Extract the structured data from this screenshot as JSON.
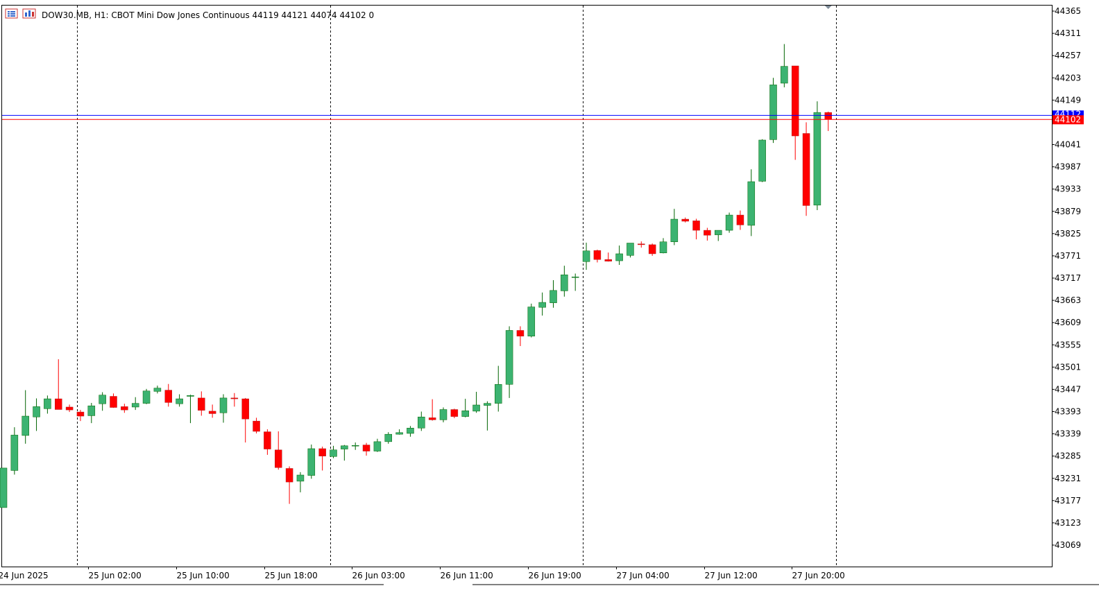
{
  "header": {
    "symbol_line": "DOW30.MB, H1:  CBOT Mini Dow Jones Continuous  44119 44121 44074 44102  0"
  },
  "colors": {
    "bull": "#3cb371",
    "bull_border": "#006400",
    "bear": "#ff0000",
    "bear_border": "#b22222",
    "ask_line": "#0000ff",
    "bid_line": "#ff0000",
    "grid": "#000000"
  },
  "chart_data": {
    "type": "candlestick",
    "symbol": "DOW30.MB",
    "timeframe": "H1",
    "ylim": [
      43015,
      44370
    ],
    "y_ticks": [
      44365,
      44311,
      44257,
      44203,
      44149,
      44041,
      43987,
      43933,
      43879,
      43825,
      43771,
      43717,
      43663,
      43609,
      43555,
      43501,
      43447,
      43393,
      43339,
      43285,
      43231,
      43177,
      43123,
      43069
    ],
    "x_ticks": [
      {
        "label": "24 Jun 2025",
        "index": -0.5
      },
      {
        "label": "25 Jun 02:00",
        "index": 7.7
      },
      {
        "label": "25 Jun 10:00",
        "index": 15.7
      },
      {
        "label": "25 Jun 18:00",
        "index": 23.7
      },
      {
        "label": "26 Jun 03:00",
        "index": 31.7
      },
      {
        "label": "26 Jun 11:00",
        "index": 39.7
      },
      {
        "label": "26 Jun 19:00",
        "index": 47.7
      },
      {
        "label": "27 Jun 04:00",
        "index": 55.7
      },
      {
        "label": "27 Jun 12:00",
        "index": 63.7
      },
      {
        "label": "27 Jun 20:00",
        "index": 71.7
      }
    ],
    "session_dividers": [
      6.7,
      29.7,
      52.7,
      75.7
    ],
    "ask_price": 44112,
    "bid_price": 44102,
    "ask_label": "44112",
    "bid_label": "44102",
    "candles": [
      {
        "o": 43160,
        "h": 43256,
        "l": 43160,
        "c": 43256
      },
      {
        "o": 43250,
        "h": 43355,
        "l": 43240,
        "c": 43336
      },
      {
        "o": 43335,
        "h": 43445,
        "l": 43315,
        "c": 43382
      },
      {
        "o": 43380,
        "h": 43425,
        "l": 43346,
        "c": 43405
      },
      {
        "o": 43400,
        "h": 43432,
        "l": 43388,
        "c": 43424
      },
      {
        "o": 43424,
        "h": 43520,
        "l": 43405,
        "c": 43398
      },
      {
        "o": 43404,
        "h": 43410,
        "l": 43392,
        "c": 43397
      },
      {
        "o": 43392,
        "h": 43397,
        "l": 43370,
        "c": 43382
      },
      {
        "o": 43383,
        "h": 43414,
        "l": 43365,
        "c": 43407
      },
      {
        "o": 43412,
        "h": 43440,
        "l": 43395,
        "c": 43433
      },
      {
        "o": 43430,
        "h": 43437,
        "l": 43402,
        "c": 43403
      },
      {
        "o": 43405,
        "h": 43412,
        "l": 43390,
        "c": 43397
      },
      {
        "o": 43404,
        "h": 43428,
        "l": 43397,
        "c": 43413
      },
      {
        "o": 43413,
        "h": 43448,
        "l": 43411,
        "c": 43443
      },
      {
        "o": 43442,
        "h": 43456,
        "l": 43437,
        "c": 43450
      },
      {
        "o": 43445,
        "h": 43460,
        "l": 43405,
        "c": 43415
      },
      {
        "o": 43412,
        "h": 43435,
        "l": 43405,
        "c": 43424
      },
      {
        "o": 43430,
        "h": 43434,
        "l": 43365,
        "c": 43432
      },
      {
        "o": 43426,
        "h": 43442,
        "l": 43383,
        "c": 43396
      },
      {
        "o": 43394,
        "h": 43410,
        "l": 43378,
        "c": 43388
      },
      {
        "o": 43390,
        "h": 43435,
        "l": 43366,
        "c": 43426
      },
      {
        "o": 43426,
        "h": 43438,
        "l": 43405,
        "c": 43424
      },
      {
        "o": 43424,
        "h": 43426,
        "l": 43318,
        "c": 43375
      },
      {
        "o": 43370,
        "h": 43378,
        "l": 43340,
        "c": 43345
      },
      {
        "o": 43344,
        "h": 43350,
        "l": 43288,
        "c": 43302
      },
      {
        "o": 43300,
        "h": 43345,
        "l": 43252,
        "c": 43257
      },
      {
        "o": 43255,
        "h": 43260,
        "l": 43169,
        "c": 43222
      },
      {
        "o": 43224,
        "h": 43246,
        "l": 43197,
        "c": 43239
      },
      {
        "o": 43238,
        "h": 43313,
        "l": 43230,
        "c": 43303
      },
      {
        "o": 43303,
        "h": 43308,
        "l": 43250,
        "c": 43285
      },
      {
        "o": 43284,
        "h": 43310,
        "l": 43280,
        "c": 43300
      },
      {
        "o": 43302,
        "h": 43312,
        "l": 43274,
        "c": 43310
      },
      {
        "o": 43310,
        "h": 43318,
        "l": 43300,
        "c": 43311
      },
      {
        "o": 43312,
        "h": 43317,
        "l": 43286,
        "c": 43297
      },
      {
        "o": 43297,
        "h": 43327,
        "l": 43295,
        "c": 43320
      },
      {
        "o": 43320,
        "h": 43343,
        "l": 43315,
        "c": 43338
      },
      {
        "o": 43338,
        "h": 43350,
        "l": 43337,
        "c": 43342
      },
      {
        "o": 43340,
        "h": 43358,
        "l": 43332,
        "c": 43353
      },
      {
        "o": 43353,
        "h": 43393,
        "l": 43346,
        "c": 43380
      },
      {
        "o": 43378,
        "h": 43423,
        "l": 43371,
        "c": 43373
      },
      {
        "o": 43373,
        "h": 43403,
        "l": 43367,
        "c": 43398
      },
      {
        "o": 43398,
        "h": 43400,
        "l": 43377,
        "c": 43381
      },
      {
        "o": 43381,
        "h": 43424,
        "l": 43379,
        "c": 43395
      },
      {
        "o": 43394,
        "h": 43441,
        "l": 43390,
        "c": 43409
      },
      {
        "o": 43408,
        "h": 43418,
        "l": 43347,
        "c": 43413
      },
      {
        "o": 43413,
        "h": 43504,
        "l": 43393,
        "c": 43459
      },
      {
        "o": 43459,
        "h": 43600,
        "l": 43426,
        "c": 43590
      },
      {
        "o": 43590,
        "h": 43600,
        "l": 43552,
        "c": 43576
      },
      {
        "o": 43576,
        "h": 43655,
        "l": 43573,
        "c": 43647
      },
      {
        "o": 43646,
        "h": 43682,
        "l": 43626,
        "c": 43658
      },
      {
        "o": 43657,
        "h": 43712,
        "l": 43645,
        "c": 43687
      },
      {
        "o": 43686,
        "h": 43747,
        "l": 43672,
        "c": 43725
      },
      {
        "o": 43720,
        "h": 43728,
        "l": 43686,
        "c": 43720
      },
      {
        "o": 43757,
        "h": 43803,
        "l": 43737,
        "c": 43783
      },
      {
        "o": 43784,
        "h": 43786,
        "l": 43755,
        "c": 43762
      },
      {
        "o": 43762,
        "h": 43779,
        "l": 43757,
        "c": 43758
      },
      {
        "o": 43759,
        "h": 43796,
        "l": 43749,
        "c": 43776
      },
      {
        "o": 43772,
        "h": 43802,
        "l": 43767,
        "c": 43802
      },
      {
        "o": 43800,
        "h": 43806,
        "l": 43791,
        "c": 43798
      },
      {
        "o": 43798,
        "h": 43801,
        "l": 43771,
        "c": 43776
      },
      {
        "o": 43778,
        "h": 43814,
        "l": 43777,
        "c": 43805
      },
      {
        "o": 43805,
        "h": 43885,
        "l": 43797,
        "c": 43860
      },
      {
        "o": 43860,
        "h": 43864,
        "l": 43852,
        "c": 43855
      },
      {
        "o": 43856,
        "h": 43861,
        "l": 43811,
        "c": 43833
      },
      {
        "o": 43833,
        "h": 43839,
        "l": 43808,
        "c": 43821
      },
      {
        "o": 43822,
        "h": 43832,
        "l": 43807,
        "c": 43833
      },
      {
        "o": 43833,
        "h": 43876,
        "l": 43827,
        "c": 43870
      },
      {
        "o": 43870,
        "h": 43881,
        "l": 43834,
        "c": 43846
      },
      {
        "o": 43845,
        "h": 43981,
        "l": 43819,
        "c": 43951
      },
      {
        "o": 43952,
        "h": 44054,
        "l": 43950,
        "c": 44052
      },
      {
        "o": 44053,
        "h": 44203,
        "l": 44045,
        "c": 44186
      },
      {
        "o": 44190,
        "h": 44285,
        "l": 44180,
        "c": 44231
      },
      {
        "o": 44232,
        "h": 44232,
        "l": 44004,
        "c": 44062
      },
      {
        "o": 44068,
        "h": 44095,
        "l": 43868,
        "c": 43893
      },
      {
        "o": 43894,
        "h": 44146,
        "l": 43882,
        "c": 44119
      },
      {
        "o": 44119,
        "h": 44121,
        "l": 44074,
        "c": 44102
      }
    ]
  }
}
